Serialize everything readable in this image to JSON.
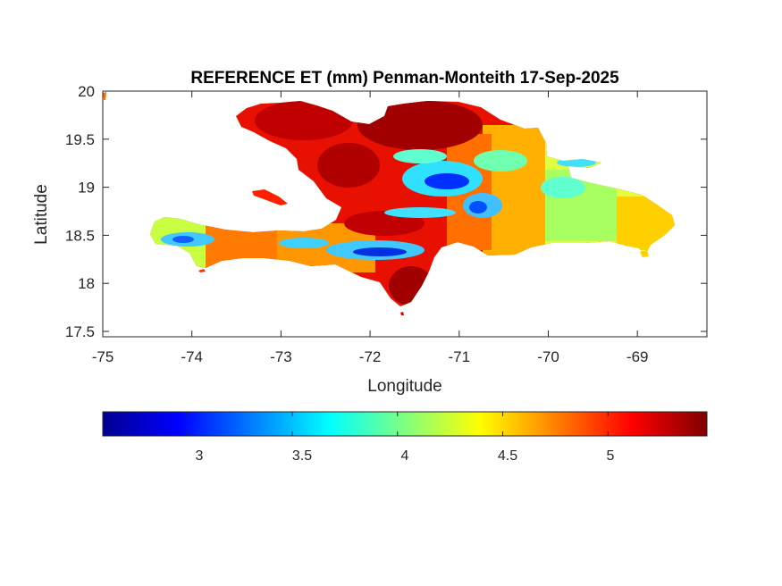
{
  "map": {
    "title": "REFERENCE ET (mm) Penman-Monteith 17-Sep-2025",
    "xlabel": "Longitude",
    "ylabel": "Latitude",
    "xticks": [
      "-75",
      "-74",
      "-73",
      "-72",
      "-71",
      "-70",
      "-69"
    ],
    "yticks": [
      "20",
      "19.5",
      "19",
      "18.5",
      "18",
      "17.5"
    ],
    "region": "Hispaniola",
    "colormap": "jet"
  },
  "colorbar": {
    "ticks": [
      "3",
      "3.5",
      "4",
      "4.5",
      "5"
    ],
    "range": [
      2.6,
      5.47
    ],
    "colors": [
      "#00008f",
      "#0000ff",
      "#0080ff",
      "#00ffff",
      "#80ff80",
      "#ffff00",
      "#ff8000",
      "#ff0000",
      "#800000"
    ]
  },
  "chart_data": {
    "type": "heatmap",
    "title": "REFERENCE ET (mm) Penman-Monteith 17-Sep-2025",
    "xlabel": "Longitude",
    "ylabel": "Latitude",
    "xlim": [
      -75,
      -68.22
    ],
    "ylim": [
      17.4,
      20.05
    ],
    "color_range": [
      2.6,
      5.47
    ],
    "colorbar_ticks": [
      3,
      3.5,
      4,
      4.5,
      5
    ],
    "grid": false
  }
}
